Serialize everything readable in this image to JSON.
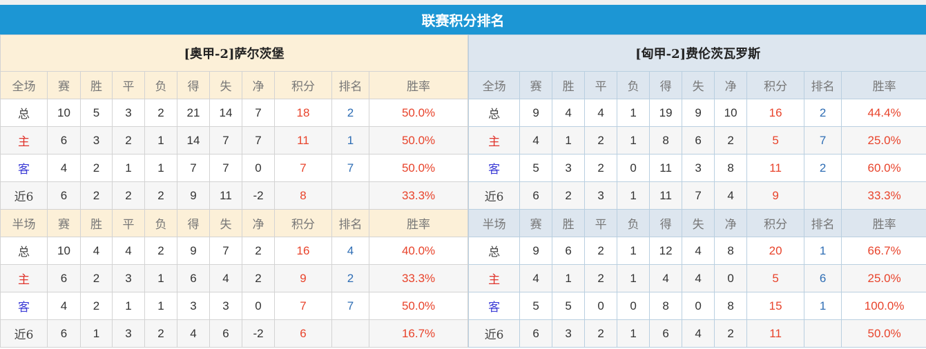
{
  "title": "联赛积分排名",
  "colors": {
    "header_bar": "#1c96d4",
    "points": "#e8432b",
    "rank": "#2e6db4",
    "home_label": "#e0332b",
    "away_label": "#3b3bd6"
  },
  "columns": [
    "赛",
    "胜",
    "平",
    "负",
    "得",
    "失",
    "净",
    "积分",
    "排名",
    "胜率"
  ],
  "sections": [
    "全场",
    "半场"
  ],
  "teams": [
    {
      "name": "[奥甲-2]萨尔茨堡",
      "full": [
        [
          "总",
          "10",
          "5",
          "3",
          "2",
          "21",
          "14",
          "7",
          "18",
          "2",
          "50.0%"
        ],
        [
          "主",
          "6",
          "3",
          "2",
          "1",
          "14",
          "7",
          "7",
          "11",
          "1",
          "50.0%"
        ],
        [
          "客",
          "4",
          "2",
          "1",
          "1",
          "7",
          "7",
          "0",
          "7",
          "7",
          "50.0%"
        ],
        [
          "近6",
          "6",
          "2",
          "2",
          "2",
          "9",
          "11",
          "-2",
          "8",
          "",
          "33.3%"
        ]
      ],
      "half": [
        [
          "总",
          "10",
          "4",
          "4",
          "2",
          "9",
          "7",
          "2",
          "16",
          "4",
          "40.0%"
        ],
        [
          "主",
          "6",
          "2",
          "3",
          "1",
          "6",
          "4",
          "2",
          "9",
          "2",
          "33.3%"
        ],
        [
          "客",
          "4",
          "2",
          "1",
          "1",
          "3",
          "3",
          "0",
          "7",
          "7",
          "50.0%"
        ],
        [
          "近6",
          "6",
          "1",
          "3",
          "2",
          "4",
          "6",
          "-2",
          "6",
          "",
          "16.7%"
        ]
      ]
    },
    {
      "name": "[匈甲-2]费伦茨瓦罗斯",
      "full": [
        [
          "总",
          "9",
          "4",
          "4",
          "1",
          "19",
          "9",
          "10",
          "16",
          "2",
          "44.4%"
        ],
        [
          "主",
          "4",
          "1",
          "2",
          "1",
          "8",
          "6",
          "2",
          "5",
          "7",
          "25.0%"
        ],
        [
          "客",
          "5",
          "3",
          "2",
          "0",
          "11",
          "3",
          "8",
          "11",
          "2",
          "60.0%"
        ],
        [
          "近6",
          "6",
          "2",
          "3",
          "1",
          "11",
          "7",
          "4",
          "9",
          "",
          "33.3%"
        ]
      ],
      "half": [
        [
          "总",
          "9",
          "6",
          "2",
          "1",
          "12",
          "4",
          "8",
          "20",
          "1",
          "66.7%"
        ],
        [
          "主",
          "4",
          "1",
          "2",
          "1",
          "4",
          "4",
          "0",
          "5",
          "6",
          "25.0%"
        ],
        [
          "客",
          "5",
          "5",
          "0",
          "0",
          "8",
          "0",
          "8",
          "15",
          "1",
          "100.0%"
        ],
        [
          "近6",
          "6",
          "3",
          "2",
          "1",
          "6",
          "4",
          "2",
          "11",
          "",
          "50.0%"
        ]
      ]
    }
  ]
}
